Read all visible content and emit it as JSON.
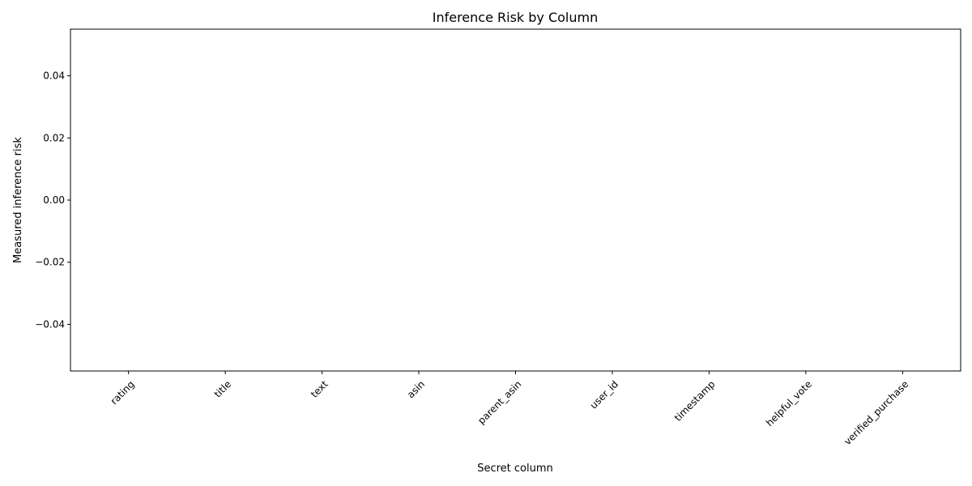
{
  "chart_data": {
    "type": "bar",
    "title": "Inference Risk by Column",
    "xlabel": "Secret column",
    "ylabel": "Measured inference risk",
    "categories": [
      "rating",
      "title",
      "text",
      "asin",
      "parent_asin",
      "user_id",
      "timestamp",
      "helpful_vote",
      "verified_purchase"
    ],
    "values": [
      0,
      0,
      0,
      0,
      0,
      0,
      0,
      0,
      0
    ],
    "ylim": [
      -0.055,
      0.055
    ],
    "yticks": [
      -0.04,
      -0.02,
      0.0,
      0.02,
      0.04
    ],
    "ytick_labels": [
      "−0.04",
      "−0.02",
      "0.00",
      "0.02",
      "0.04"
    ],
    "grid": false,
    "legend": "none",
    "colors": {
      "axis": "#000000",
      "bar": "#1f77b4"
    }
  }
}
